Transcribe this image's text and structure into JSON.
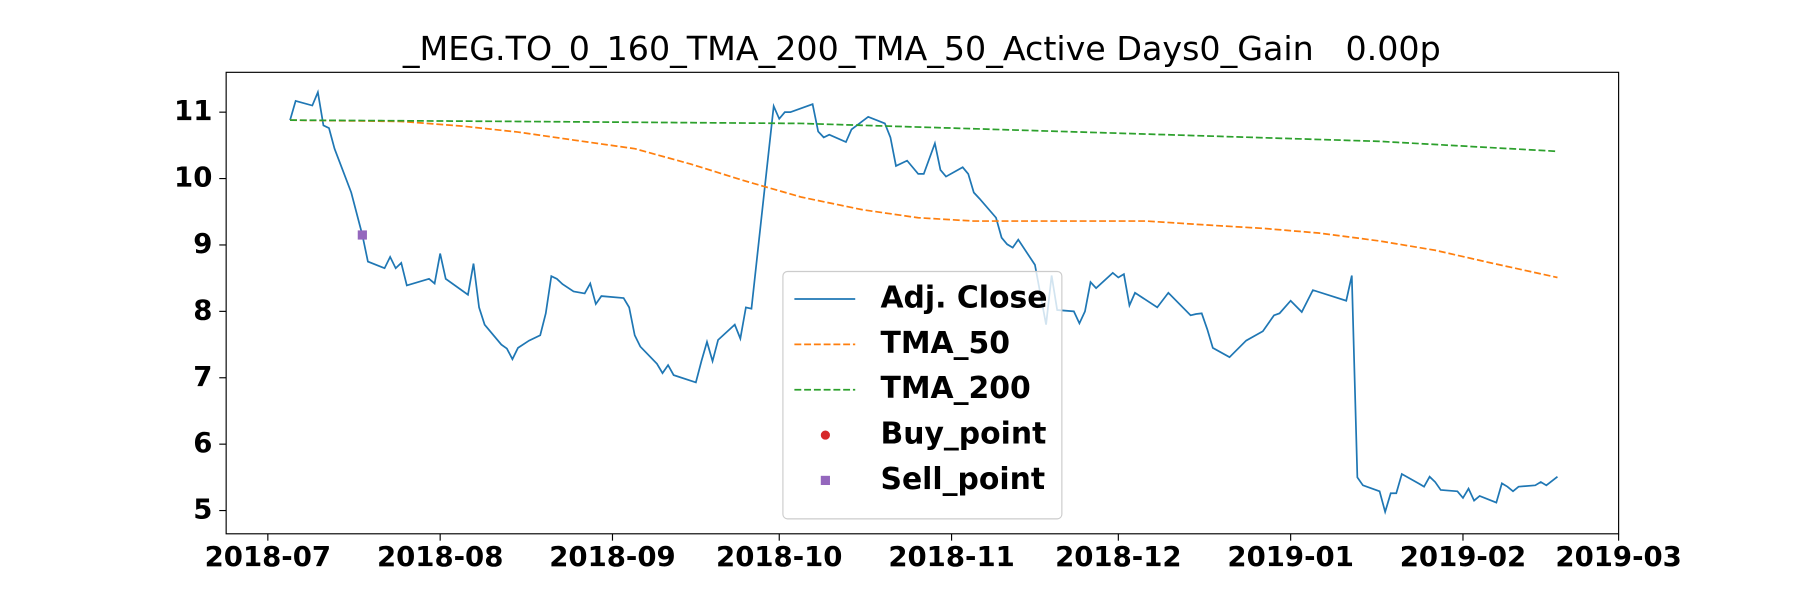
{
  "chart_data": {
    "type": "line",
    "title": "_MEG.TO_0_160_TMA_200_TMA_50_Active Days0_Gain   0.00p",
    "xlim": [
      -7.5,
      243
    ],
    "ylim": [
      4.65,
      11.6
    ],
    "xticks": [
      {
        "value": 0,
        "label": "2018-07"
      },
      {
        "value": 31,
        "label": "2018-08"
      },
      {
        "value": 62,
        "label": "2018-09"
      },
      {
        "value": 92,
        "label": "2018-10"
      },
      {
        "value": 123,
        "label": "2018-11"
      },
      {
        "value": 153,
        "label": "2018-12"
      },
      {
        "value": 184,
        "label": "2019-01"
      },
      {
        "value": 215,
        "label": "2019-02"
      },
      {
        "value": 243,
        "label": "2019-03"
      }
    ],
    "yticks": [
      5,
      6,
      7,
      8,
      9,
      10,
      11
    ],
    "legend": "lower center",
    "series": [
      {
        "name": "Adj. Close",
        "color": "#1f77b4",
        "style": "solid",
        "x": [
          4,
          5,
          8,
          9,
          10,
          11,
          12,
          15,
          17,
          18,
          21,
          22,
          23,
          24,
          25,
          29,
          30,
          31,
          32,
          36,
          37,
          38,
          39,
          42,
          43,
          44,
          45,
          47,
          49,
          50,
          51,
          52,
          53,
          55,
          57,
          58,
          59,
          60,
          64,
          65,
          66,
          67,
          70,
          71,
          72,
          73,
          77,
          78,
          79,
          80,
          81,
          84,
          85,
          86,
          87,
          91,
          92,
          93,
          94,
          98,
          99,
          100,
          101,
          104,
          105,
          108,
          111,
          112,
          113,
          115,
          117,
          118,
          120,
          121,
          122,
          125,
          126,
          127,
          128,
          131,
          132,
          133,
          134,
          135,
          138,
          140,
          141,
          142,
          145,
          146,
          147,
          148,
          149,
          152,
          153,
          154,
          155,
          156,
          160,
          162,
          166,
          167,
          168,
          169,
          170,
          173,
          176,
          179,
          181,
          182,
          184,
          186,
          188,
          194,
          195,
          196,
          197,
          200,
          201,
          202,
          203,
          204,
          207,
          208,
          209,
          210,
          211,
          214,
          215,
          216,
          217,
          218,
          221,
          222,
          223,
          224,
          225,
          228,
          229,
          230,
          232
        ],
        "values": [
          10.88,
          11.17,
          11.1,
          11.3,
          10.8,
          10.76,
          10.45,
          9.79,
          9.15,
          8.75,
          8.65,
          8.82,
          8.65,
          8.73,
          8.39,
          8.49,
          8.42,
          8.87,
          8.49,
          8.25,
          8.72,
          8.06,
          7.8,
          7.5,
          7.44,
          7.28,
          7.45,
          7.56,
          7.64,
          7.97,
          8.53,
          8.49,
          8.41,
          8.3,
          8.27,
          8.42,
          8.11,
          8.23,
          8.2,
          8.06,
          7.64,
          7.47,
          7.21,
          7.07,
          7.19,
          7.04,
          6.93,
          7.25,
          7.54,
          7.25,
          7.57,
          7.8,
          7.59,
          8.06,
          8.04,
          11.09,
          10.9,
          11.0,
          11.0,
          11.12,
          10.71,
          10.62,
          10.66,
          10.55,
          10.74,
          10.93,
          10.83,
          10.62,
          10.19,
          10.27,
          10.07,
          10.07,
          10.53,
          10.13,
          10.03,
          10.17,
          10.07,
          9.79,
          9.7,
          9.41,
          9.11,
          9.01,
          8.96,
          9.08,
          8.7,
          7.8,
          8.54,
          8.02,
          8.0,
          7.82,
          8.0,
          8.44,
          8.35,
          8.58,
          8.51,
          8.56,
          8.09,
          8.28,
          8.06,
          8.28,
          7.94,
          7.96,
          7.97,
          7.73,
          7.45,
          7.31,
          7.56,
          7.7,
          7.94,
          7.97,
          8.16,
          7.99,
          8.32,
          8.16,
          8.54,
          5.5,
          5.38,
          5.29,
          4.98,
          5.26,
          5.26,
          5.55,
          5.41,
          5.36,
          5.51,
          5.43,
          5.31,
          5.29,
          5.19,
          5.33,
          5.15,
          5.22,
          5.12,
          5.41,
          5.36,
          5.29,
          5.36,
          5.38,
          5.43,
          5.38,
          5.51
        ]
      },
      {
        "name": "TMA_50",
        "color": "#ff7f0e",
        "style": "dashed",
        "x": [
          4,
          24,
          35,
          45,
          55,
          66,
          76,
          86,
          96,
          107,
          117,
          127,
          138,
          158,
          169,
          179,
          189,
          200,
          210,
          220,
          232
        ],
        "values": [
          10.88,
          10.86,
          10.79,
          10.7,
          10.58,
          10.45,
          10.22,
          9.96,
          9.72,
          9.53,
          9.41,
          9.36,
          9.36,
          9.36,
          9.3,
          9.25,
          9.18,
          9.06,
          8.92,
          8.73,
          8.51
        ]
      },
      {
        "name": "TMA_200",
        "color": "#2ca02c",
        "style": "dashed",
        "x": [
          4,
          45,
          96,
          158,
          200,
          232
        ],
        "values": [
          10.88,
          10.86,
          10.83,
          10.67,
          10.56,
          10.41
        ]
      },
      {
        "name": "Buy_point",
        "color": "#d62728",
        "style": "marker",
        "marker": "o",
        "x": [],
        "values": []
      },
      {
        "name": "Sell_point",
        "color": "#9467bd",
        "style": "marker",
        "marker": "s",
        "x": [
          17
        ],
        "values": [
          9.15
        ]
      }
    ]
  }
}
